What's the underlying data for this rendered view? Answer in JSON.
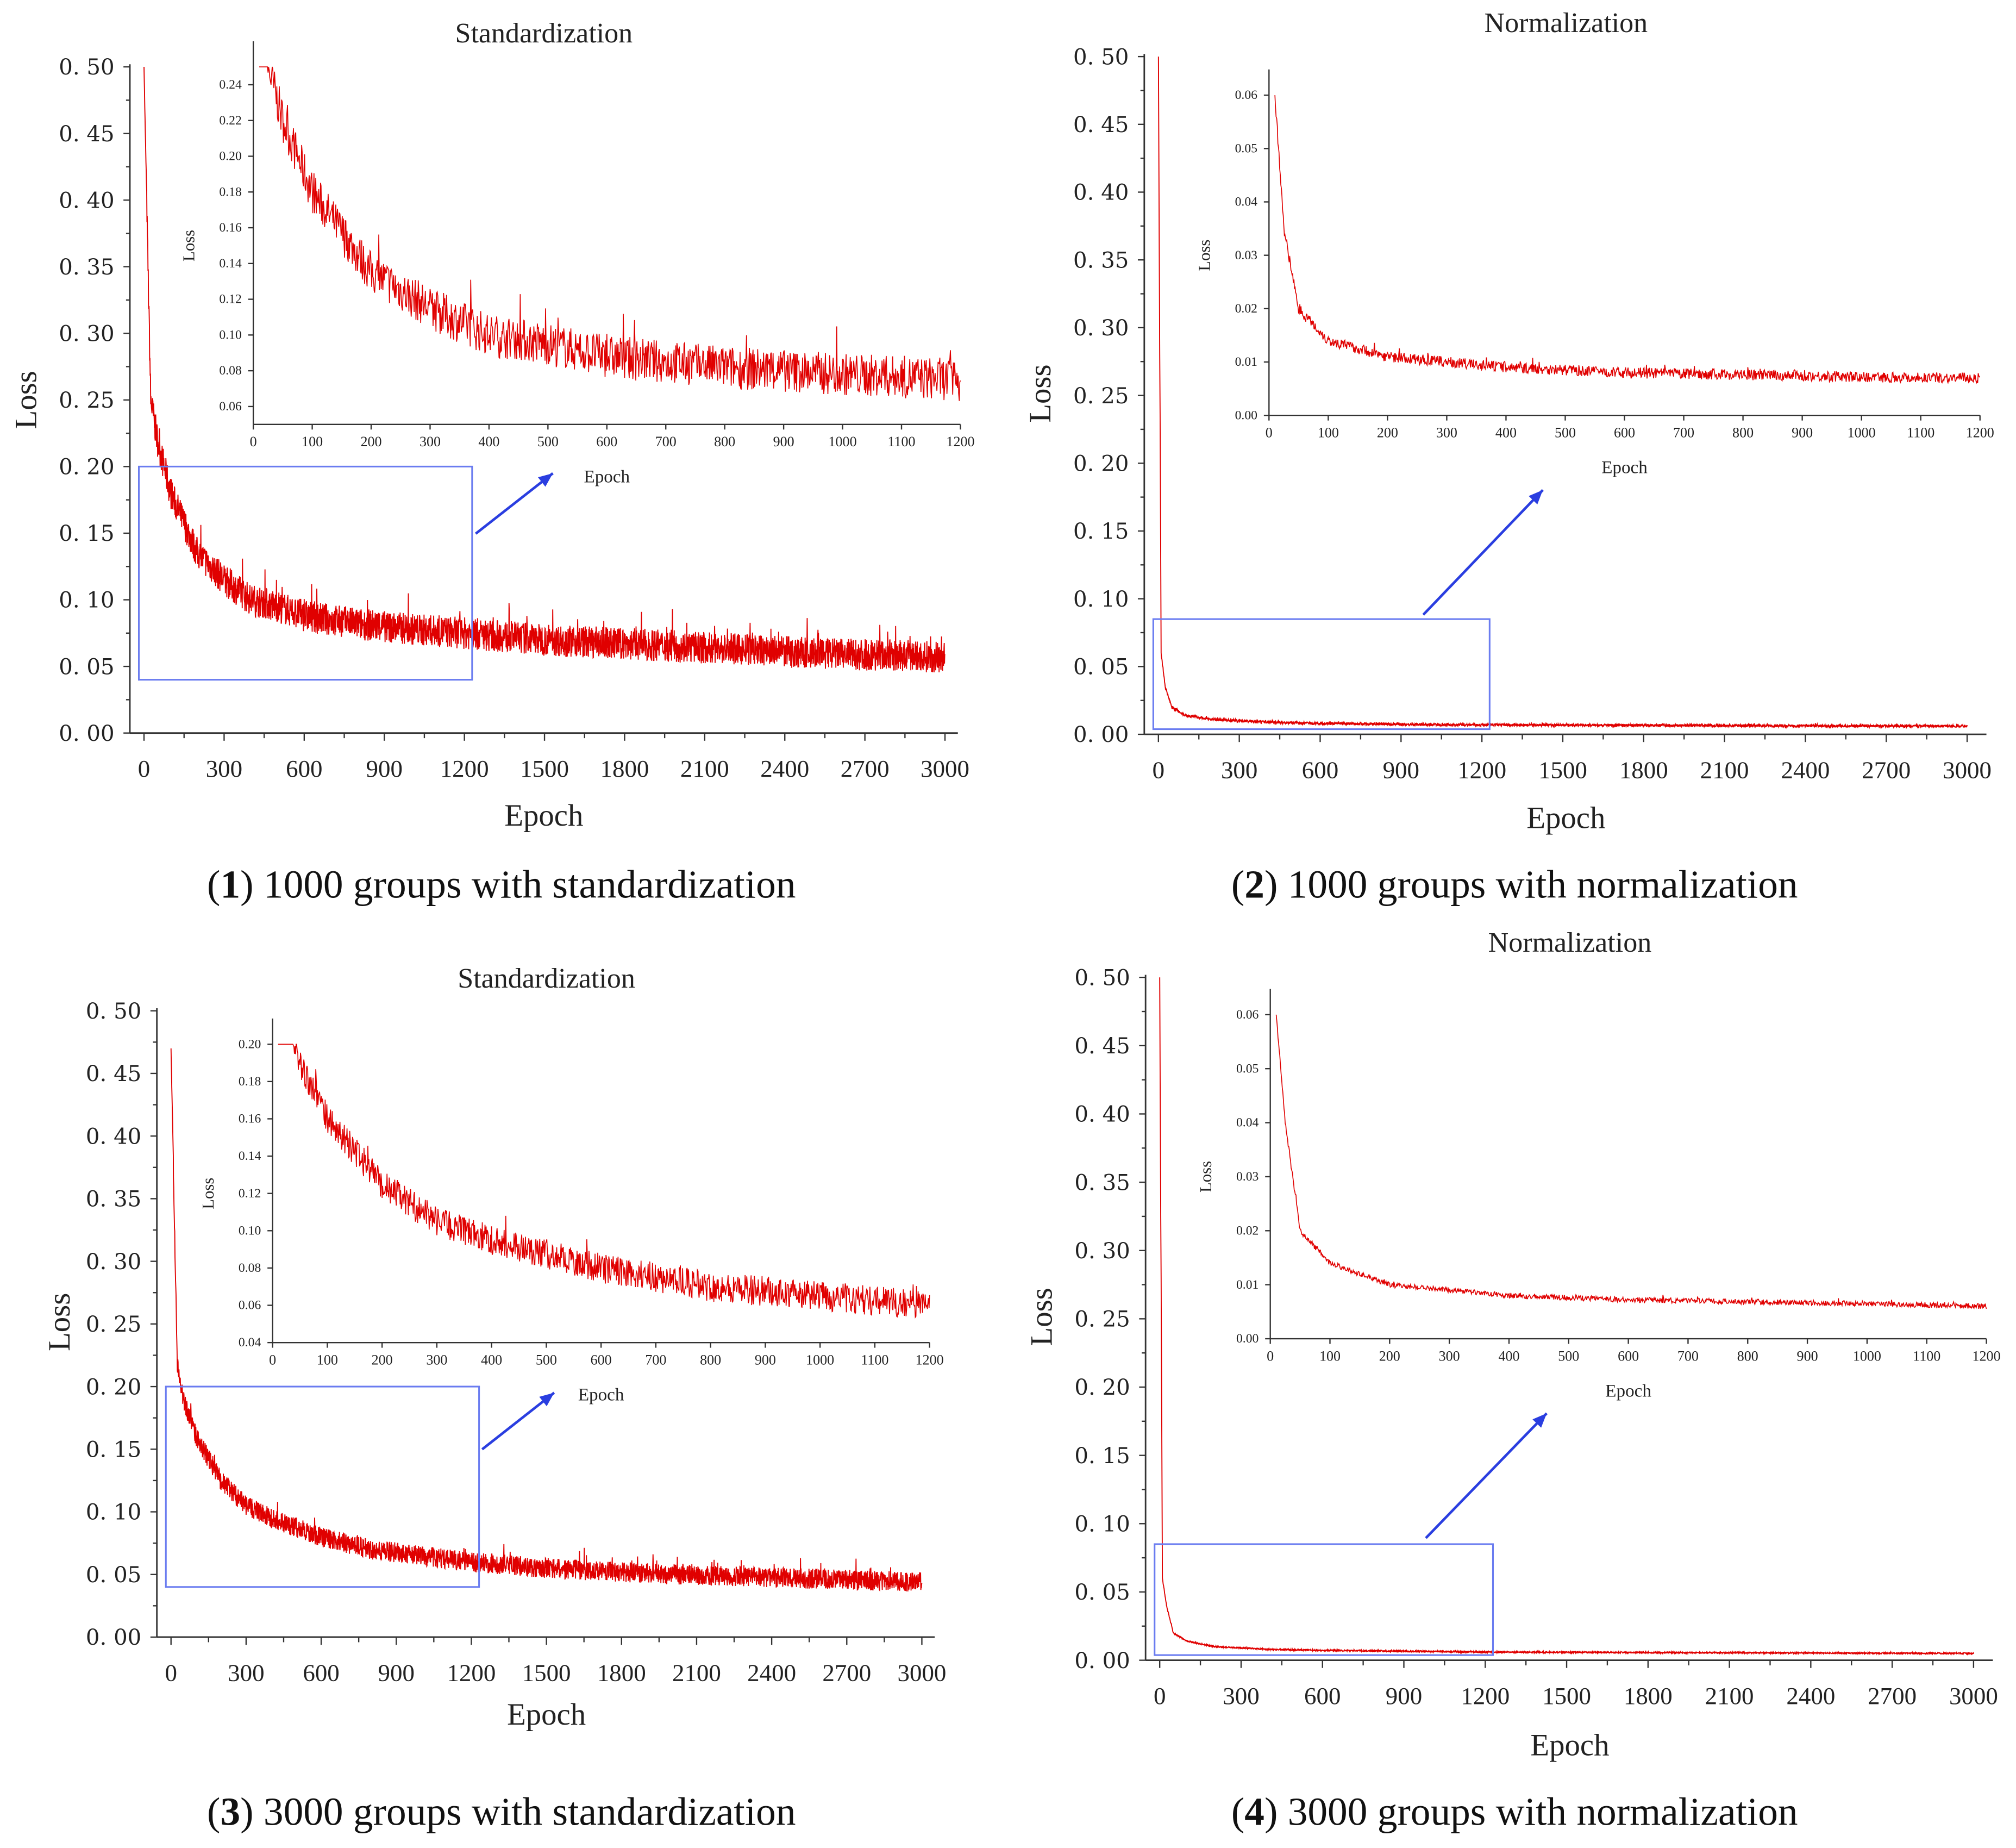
{
  "chart_data": [
    {
      "type": "line",
      "caption_num": "1",
      "caption_text": "1000 groups with standardization",
      "title": "Standardization",
      "xlabel": "Epoch",
      "ylabel": "Loss",
      "xlim": [
        0,
        3000
      ],
      "ylim": [
        0,
        0.5
      ],
      "xticks": [
        "0",
        "300",
        "600",
        "900",
        "1200",
        "1500",
        "1800",
        "2100",
        "2400",
        "2700",
        "3000"
      ],
      "yticks": [
        "0. 00",
        "0. 05",
        "0. 10",
        "0. 15",
        "0. 20",
        "0. 25",
        "0. 30",
        "0. 35",
        "0. 40",
        "0. 45",
        "0. 50"
      ],
      "series": [
        {
          "name": "Loss",
          "color": "#e00000",
          "x": [
            0,
            25,
            50,
            100,
            200,
            300,
            400,
            500,
            600,
            800,
            1000,
            1200,
            1500,
            2000,
            2500,
            3000
          ],
          "y": [
            0.5,
            0.25,
            0.22,
            0.18,
            0.135,
            0.115,
            0.1,
            0.095,
            0.088,
            0.082,
            0.078,
            0.075,
            0.07,
            0.065,
            0.06,
            0.057
          ],
          "noise": 0.012
        }
      ],
      "zoom_box": {
        "x": [
          0,
          1200
        ],
        "y": [
          0.04,
          0.2
        ],
        "color": "#6a7cf0"
      },
      "inset": {
        "xlabel": "Epoch",
        "ylabel": "Loss",
        "xlim": [
          0,
          1200
        ],
        "ylim": [
          0.05,
          0.25
        ],
        "xticks": [
          "0",
          "100",
          "200",
          "300",
          "400",
          "500",
          "600",
          "700",
          "800",
          "900",
          "1000",
          "1100",
          "1200"
        ],
        "yticks": [
          "0.06",
          "0.08",
          "0.10",
          "0.12",
          "0.14",
          "0.16",
          "0.18",
          "0.20",
          "0.22",
          "0.24"
        ]
      }
    },
    {
      "type": "line",
      "caption_num": "2",
      "caption_text": "1000 groups with normalization",
      "title": "Normalization",
      "xlabel": "Epoch",
      "ylabel": "Loss",
      "xlim": [
        0,
        3000
      ],
      "ylim": [
        0,
        0.5
      ],
      "xticks": [
        "0",
        "300",
        "600",
        "900",
        "1200",
        "1500",
        "1800",
        "2100",
        "2400",
        "2700",
        "3000"
      ],
      "yticks": [
        "0. 00",
        "0. 05",
        "0. 10",
        "0. 15",
        "0. 20",
        "0. 25",
        "0. 30",
        "0. 35",
        "0. 40",
        "0. 45",
        "0. 50"
      ],
      "series": [
        {
          "name": "Loss",
          "color": "#e00000",
          "x": [
            0,
            10,
            25,
            50,
            100,
            200,
            400,
            600,
            1000,
            1200,
            2000,
            3000
          ],
          "y": [
            0.5,
            0.06,
            0.035,
            0.02,
            0.014,
            0.011,
            0.009,
            0.008,
            0.0072,
            0.007,
            0.0065,
            0.006
          ],
          "noise": 0.001
        }
      ],
      "zoom_box": {
        "x": [
          0,
          1200
        ],
        "y": [
          0.0,
          0.085
        ],
        "color": "#6a7cf0"
      },
      "inset": {
        "xlabel": "Epoch",
        "ylabel": "Loss",
        "xlim": [
          0,
          1200
        ],
        "ylim": [
          0,
          0.06
        ],
        "xticks": [
          "0",
          "100",
          "200",
          "300",
          "400",
          "500",
          "600",
          "700",
          "800",
          "900",
          "1000",
          "1100",
          "1200"
        ],
        "yticks": [
          "0.00",
          "0.01",
          "0.02",
          "0.03",
          "0.04",
          "0.05",
          "0.06"
        ]
      }
    },
    {
      "type": "line",
      "caption_num": "3",
      "caption_text": "3000 groups with standardization",
      "title": "Standardization",
      "xlabel": "Epoch",
      "ylabel": "Loss",
      "xlim": [
        0,
        3000
      ],
      "ylim": [
        0,
        0.5
      ],
      "xticks": [
        "0",
        "300",
        "600",
        "900",
        "1200",
        "1500",
        "1800",
        "2100",
        "2400",
        "2700",
        "3000"
      ],
      "yticks": [
        "0. 00",
        "0. 05",
        "0. 10",
        "0. 15",
        "0. 20",
        "0. 25",
        "0. 30",
        "0. 35",
        "0. 40",
        "0. 45",
        "0. 50"
      ],
      "series": [
        {
          "name": "Loss",
          "color": "#e00000",
          "x": [
            0,
            25,
            50,
            100,
            200,
            300,
            400,
            600,
            800,
            1000,
            1200,
            1500,
            2000,
            2500,
            3000
          ],
          "y": [
            0.47,
            0.22,
            0.19,
            0.16,
            0.125,
            0.105,
            0.095,
            0.08,
            0.07,
            0.065,
            0.06,
            0.055,
            0.05,
            0.047,
            0.044
          ],
          "noise": 0.008
        }
      ],
      "zoom_box": {
        "x": [
          0,
          1200
        ],
        "y": [
          0.04,
          0.2
        ],
        "color": "#6a7cf0"
      },
      "inset": {
        "xlabel": "Epoch",
        "ylabel": "Loss",
        "xlim": [
          0,
          1200
        ],
        "ylim": [
          0.04,
          0.2
        ],
        "xticks": [
          "0",
          "100",
          "200",
          "300",
          "400",
          "500",
          "600",
          "700",
          "800",
          "900",
          "1000",
          "1100",
          "1200"
        ],
        "yticks": [
          "0.04",
          "0.06",
          "0.08",
          "0.10",
          "0.12",
          "0.14",
          "0.16",
          "0.18",
          "0.20"
        ]
      }
    },
    {
      "type": "line",
      "caption_num": "4",
      "caption_text": "3000 groups with normalization",
      "title": "Normalization",
      "xlabel": "Epoch",
      "ylabel": "Loss",
      "xlim": [
        0,
        3000
      ],
      "ylim": [
        0,
        0.5
      ],
      "xticks": [
        "0",
        "300",
        "600",
        "900",
        "1200",
        "1500",
        "1800",
        "2100",
        "2400",
        "2700",
        "3000"
      ],
      "yticks": [
        "0. 00",
        "0. 05",
        "0. 10",
        "0. 15",
        "0. 20",
        "0. 25",
        "0. 30",
        "0. 35",
        "0. 40",
        "0. 45",
        "0. 50"
      ],
      "series": [
        {
          "name": "Loss",
          "color": "#e00000",
          "x": [
            0,
            10,
            25,
            50,
            100,
            200,
            400,
            600,
            1000,
            1200,
            3000
          ],
          "y": [
            0.5,
            0.06,
            0.04,
            0.02,
            0.014,
            0.01,
            0.008,
            0.0072,
            0.0065,
            0.006,
            0.005
          ],
          "noise": 0.0005
        }
      ],
      "zoom_box": {
        "x": [
          0,
          1200
        ],
        "y": [
          0.0,
          0.085
        ],
        "color": "#6a7cf0"
      },
      "inset": {
        "xlabel": "Epoch",
        "ylabel": "Loss",
        "xlim": [
          0,
          1200
        ],
        "ylim": [
          0,
          0.06
        ],
        "xticks": [
          "0",
          "100",
          "200",
          "300",
          "400",
          "500",
          "600",
          "700",
          "800",
          "900",
          "1000",
          "1100",
          "1200"
        ],
        "yticks": [
          "0.00",
          "0.01",
          "0.02",
          "0.03",
          "0.04",
          "0.05",
          "0.06"
        ]
      }
    }
  ]
}
